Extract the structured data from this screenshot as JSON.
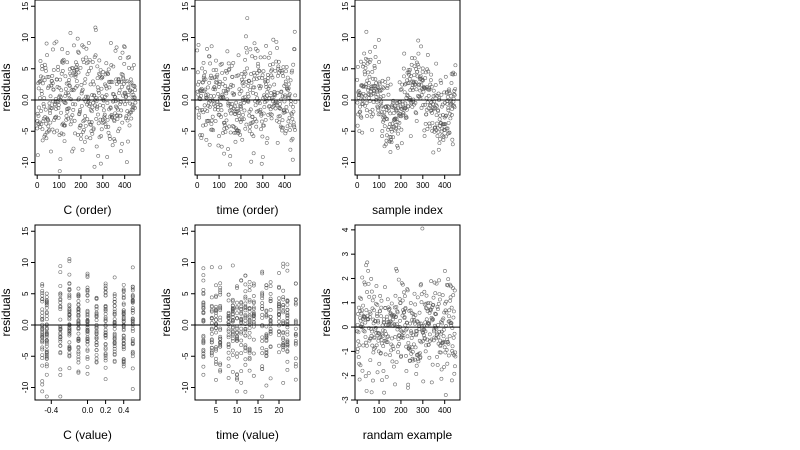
{
  "figure": {
    "background": "#ffffff",
    "point_color": "#555555",
    "zero_line_color": "#000000"
  },
  "chart_data": [
    {
      "type": "scatter",
      "xlabel": "C (order)",
      "ylabel": "residuals",
      "xlim": [
        -10,
        470
      ],
      "ylim": [
        -12,
        16
      ],
      "xticks": [
        0,
        100,
        200,
        300,
        400
      ],
      "xtick_labels": [
        "0",
        "100",
        "200",
        "300",
        "400"
      ],
      "yticks": [
        -10,
        -5,
        0,
        5,
        10,
        15
      ],
      "ytick_labels": [
        "-10",
        "-5",
        "0.0",
        "5",
        "10",
        "15"
      ],
      "hline": 0,
      "seed": 11,
      "n": 450,
      "x_kind": "order",
      "sd": 4.0
    },
    {
      "type": "scatter",
      "xlabel": "time (order)",
      "ylabel": "residuals",
      "xlim": [
        -10,
        470
      ],
      "ylim": [
        -12,
        16
      ],
      "xticks": [
        0,
        100,
        200,
        300,
        400
      ],
      "xtick_labels": [
        "0",
        "100",
        "200",
        "300",
        "400"
      ],
      "yticks": [
        -10,
        -5,
        0,
        5,
        10,
        15
      ],
      "ytick_labels": [
        "-10",
        "-5",
        "0.0",
        "5",
        "10",
        "15"
      ],
      "hline": 0,
      "seed": 23,
      "n": 450,
      "x_kind": "order",
      "sd": 4.0
    },
    {
      "type": "scatter",
      "xlabel": "sample index",
      "ylabel": "residuals",
      "xlim": [
        -10,
        470
      ],
      "ylim": [
        -12,
        16
      ],
      "xticks": [
        0,
        100,
        200,
        300,
        400
      ],
      "xtick_labels": [
        "0",
        "100",
        "200",
        "300",
        "400"
      ],
      "yticks": [
        -10,
        -5,
        0,
        5,
        10,
        15
      ],
      "ytick_labels": [
        "-10",
        "-5",
        "0.0",
        "5",
        "10",
        "15"
      ],
      "hline": 0,
      "seed": 37,
      "n": 450,
      "x_kind": "order_wave",
      "sd": 3.5
    },
    {
      "type": "scatter",
      "xlabel": "C (value)",
      "ylabel": "residuals",
      "xlim": [
        -0.58,
        0.58
      ],
      "ylim": [
        -12,
        16
      ],
      "xticks": [
        -0.4,
        0.0,
        0.2,
        0.4
      ],
      "xtick_labels": [
        "-0.4",
        "0.0",
        "0.2",
        "0.4"
      ],
      "yticks": [
        -10,
        -5,
        0,
        5,
        10,
        15
      ],
      "ytick_labels": [
        "-10",
        "-5",
        "0.0",
        "5",
        "10",
        "15"
      ],
      "hline": 0,
      "seed": 41,
      "n": 450,
      "x_kind": "discrete",
      "x_levels": [
        -0.5,
        -0.45,
        -0.3,
        -0.2,
        -0.1,
        0.0,
        0.1,
        0.2,
        0.3,
        0.4,
        0.5
      ],
      "sd": 4.0
    },
    {
      "type": "scatter",
      "xlabel": "time (value)",
      "ylabel": "residuals",
      "xlim": [
        0,
        25
      ],
      "ylim": [
        -12,
        16
      ],
      "xticks": [
        5,
        10,
        15,
        20
      ],
      "xtick_labels": [
        "5",
        "10",
        "15",
        "20"
      ],
      "yticks": [
        -10,
        -5,
        0,
        5,
        10,
        15
      ],
      "ytick_labels": [
        "-10",
        "-5",
        "0.0",
        "5",
        "10",
        "15"
      ],
      "hline": 0,
      "seed": 53,
      "n": 450,
      "x_kind": "discrete",
      "x_levels": [
        2,
        4,
        5,
        6,
        8,
        9,
        10,
        11,
        12,
        13,
        14,
        16,
        17,
        18,
        20,
        21,
        22,
        24
      ],
      "sd": 4.0
    },
    {
      "type": "scatter",
      "xlabel": "randam example",
      "ylabel": "residuals",
      "xlim": [
        -10,
        470
      ],
      "ylim": [
        -3,
        4.2
      ],
      "xticks": [
        0,
        100,
        200,
        300,
        400
      ],
      "xtick_labels": [
        "0",
        "100",
        "200",
        "300",
        "400"
      ],
      "yticks": [
        -3,
        -2,
        -1,
        0,
        1,
        2,
        3,
        4
      ],
      "ytick_labels": [
        "-3",
        "-2",
        "-1",
        "0",
        "1",
        "2",
        "3",
        "4"
      ],
      "hline": 0,
      "seed": 67,
      "n": 450,
      "x_kind": "order",
      "sd": 1.0
    }
  ]
}
